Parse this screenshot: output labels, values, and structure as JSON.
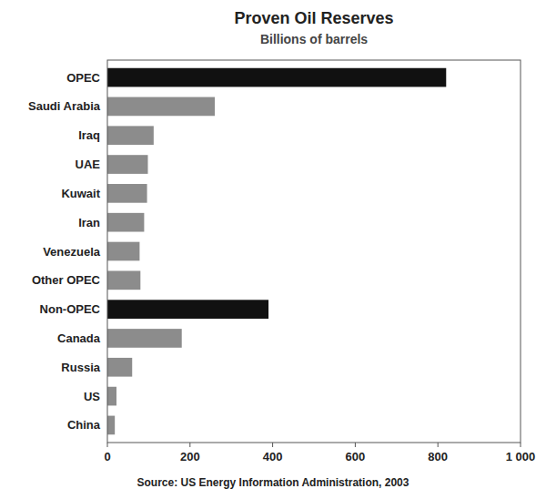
{
  "chart_data": {
    "type": "bar",
    "orientation": "horizontal",
    "title": "Proven Oil Reserves",
    "subtitle": "Billions of barrels",
    "source": "Source: US Energy Information Administration, 2003",
    "categories": [
      "OPEC",
      "Saudi Arabia",
      "Iraq",
      "UAE",
      "Kuwait",
      "Iran",
      "Venezuela",
      "Other OPEC",
      "Non-OPEC",
      "Canada",
      "Russia",
      "US",
      "China"
    ],
    "values": [
      820,
      260,
      112,
      98,
      96,
      89,
      78,
      80,
      390,
      180,
      60,
      22,
      18
    ],
    "colors": [
      "#111111",
      "#8c8c8c",
      "#8c8c8c",
      "#8c8c8c",
      "#8c8c8c",
      "#8c8c8c",
      "#8c8c8c",
      "#8c8c8c",
      "#111111",
      "#8c8c8c",
      "#8c8c8c",
      "#8c8c8c",
      "#8c8c8c"
    ],
    "xlim": [
      0,
      1000
    ],
    "xticks": [
      0,
      200,
      400,
      600,
      800,
      {
        "value": 1000,
        "label": "1 000"
      }
    ],
    "grid": false
  }
}
